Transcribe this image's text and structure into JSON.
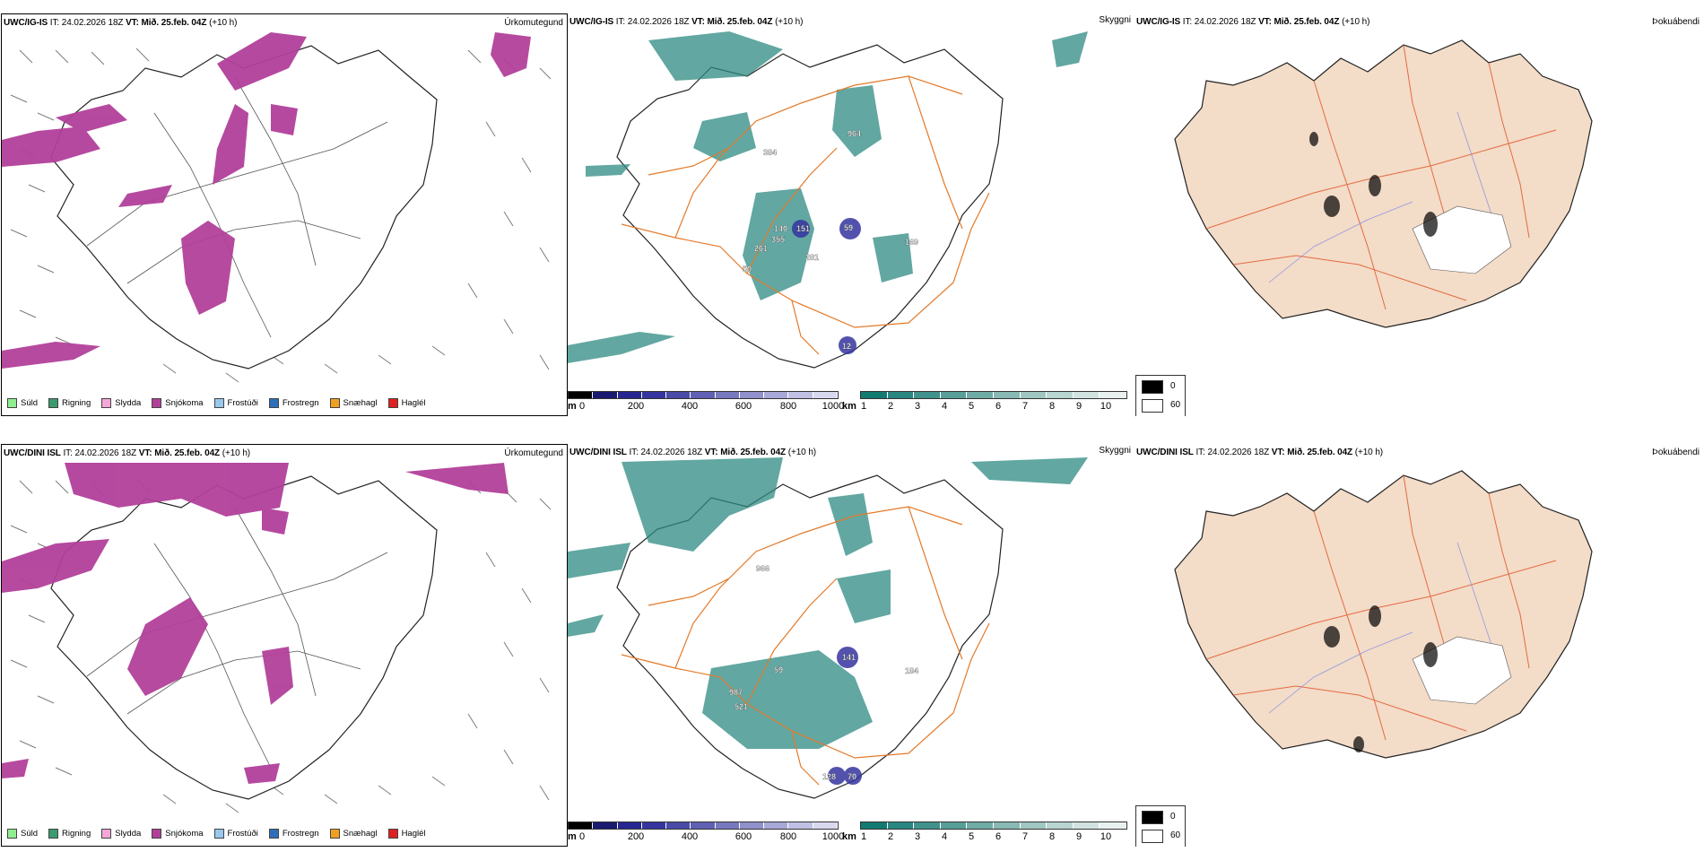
{
  "rows": [
    {
      "model": "UWC/IG-IS",
      "init_prefix": "IT:",
      "init_time": "24.02.2026 18Z",
      "valid_prefix": "VT:",
      "valid_time": "Mið. 25.feb. 04Z",
      "lead": "(+10 h)",
      "vis_labels": [
        "964",
        "384",
        "140",
        "151",
        "59",
        "355",
        "261",
        "169",
        "50",
        "281",
        "12"
      ]
    },
    {
      "model": "UWC/DINI ISL",
      "init_prefix": "IT:",
      "init_time": "24.02.2026 18Z",
      "valid_prefix": "VT:",
      "valid_time": "Mið. 25.feb. 04Z",
      "lead": "(+10 h)",
      "vis_labels": [
        "966",
        "141",
        "59",
        "184",
        "987",
        "521",
        "128",
        "70"
      ]
    }
  ],
  "panels": {
    "precip": "Úrkomutegund",
    "visibility": "Skyggni",
    "fog": "Þokuábendi"
  },
  "precip_legend": [
    {
      "label": "Súld",
      "color": "#90ee90"
    },
    {
      "label": "Rigning",
      "color": "#3c9a6e"
    },
    {
      "label": "Slydda",
      "color": "#f4a6d6"
    },
    {
      "label": "Snjókoma",
      "color": "#b2409a"
    },
    {
      "label": "Frostúði",
      "color": "#99c8ef"
    },
    {
      "label": "Frostregn",
      "color": "#2f6fb8"
    },
    {
      "label": "Snæhagl",
      "color": "#f0a020"
    },
    {
      "label": "Haglél",
      "color": "#e02020"
    }
  ],
  "height_bar": {
    "unit": "m",
    "ticks": [
      "0",
      "200",
      "400",
      "600",
      "800",
      "1000"
    ],
    "colors": [
      "#000000",
      "#1a1a70",
      "#262690",
      "#3535a0",
      "#4a4aa8",
      "#6060b4",
      "#7878c0",
      "#9090cc",
      "#a8a8d8",
      "#c0c0e4",
      "#d8d8ef"
    ]
  },
  "cloud_bar": {
    "unit": "km",
    "ticks": [
      "1",
      "2",
      "3",
      "4",
      "5",
      "6",
      "7",
      "8",
      "9",
      "10"
    ],
    "colors": [
      "#137a72",
      "#2a8680",
      "#40928c",
      "#589f99",
      "#70aca6",
      "#88b9b4",
      "#a0c7c2",
      "#b8d5d1",
      "#d0e3e0",
      "#e8f1f0"
    ]
  },
  "fog_key": {
    "high": "0",
    "low": "60"
  },
  "colors": {
    "snow": "#b2409a",
    "vis": "#2e8a82",
    "road": "#e37a2a",
    "land": "#f3dcc8",
    "river": "#7d86e6"
  }
}
